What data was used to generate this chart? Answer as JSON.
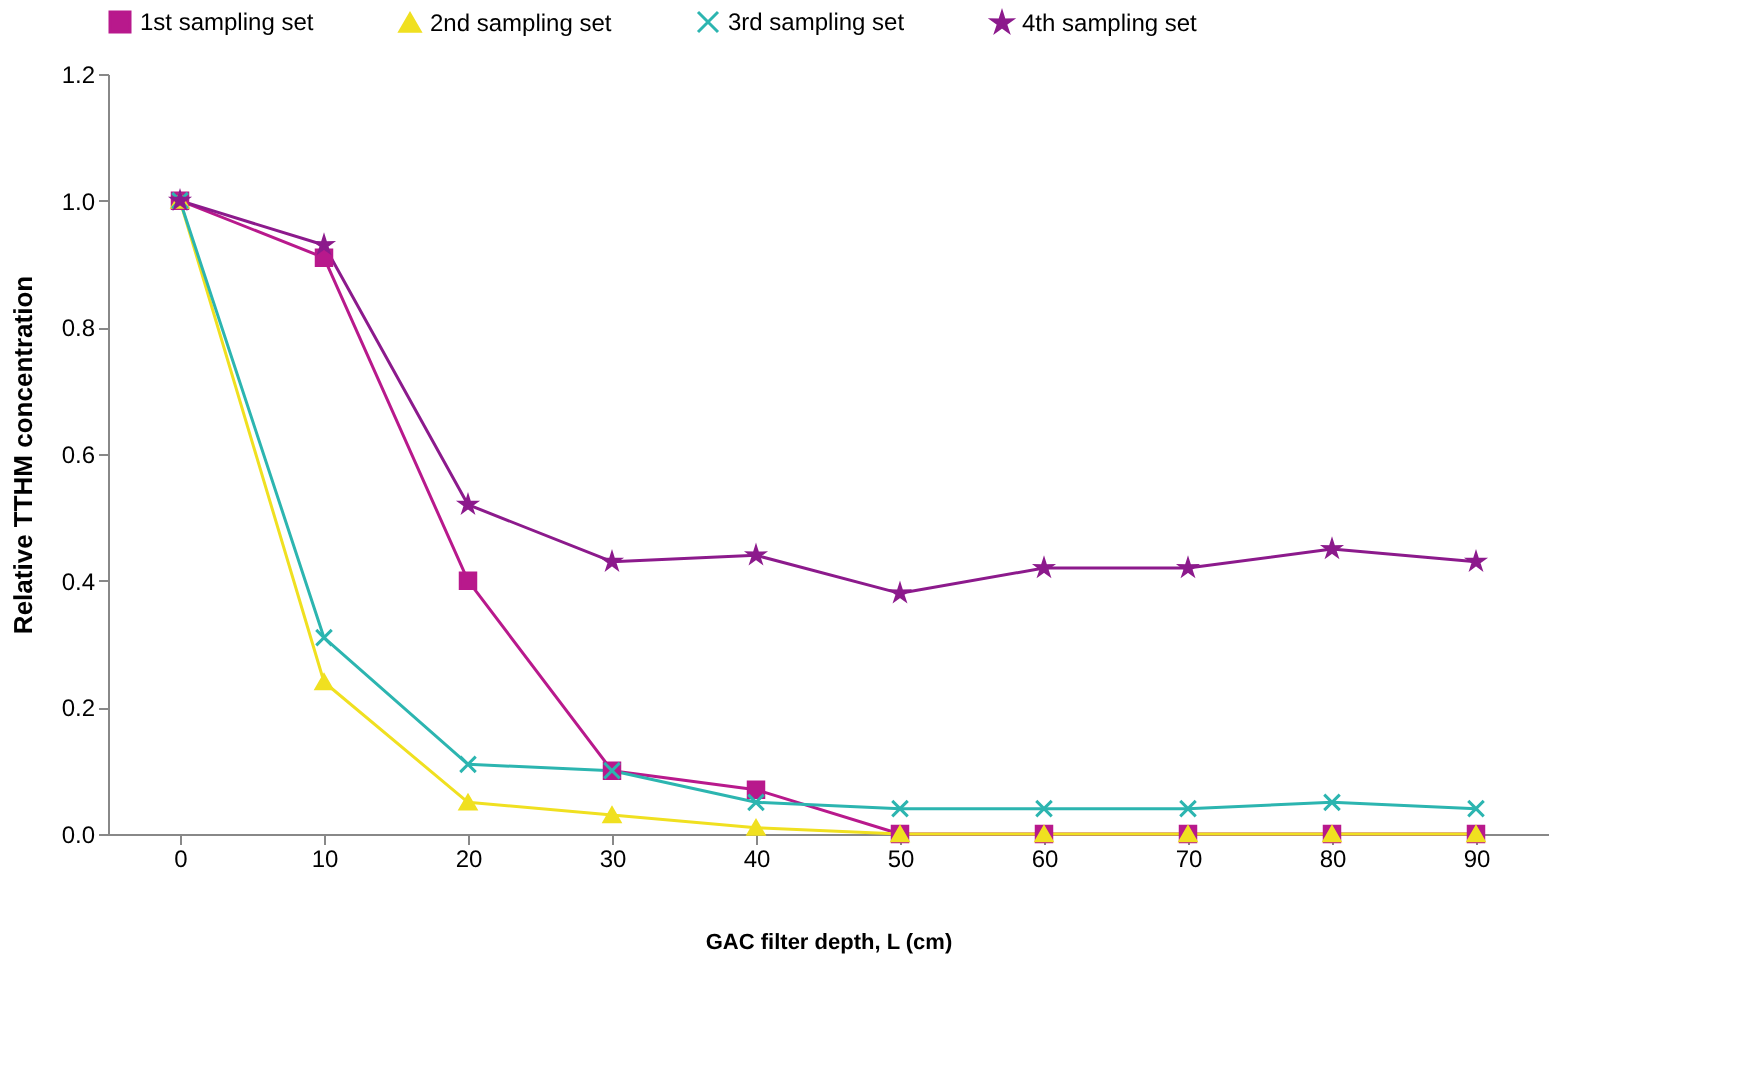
{
  "chart_data": {
    "type": "line",
    "xlabel": "GAC filter depth, L (cm)",
    "ylabel": "Relative TTHM concentration",
    "categories": [
      "0",
      "10",
      "20",
      "30",
      "40",
      "50",
      "60",
      "70",
      "80",
      "90"
    ],
    "ylim": [
      0,
      1.2
    ],
    "yticks": [
      {
        "value": 0,
        "label": "0.0"
      },
      {
        "value": 0.2,
        "label": "0.2"
      },
      {
        "value": 0.4,
        "label": "0.4"
      },
      {
        "value": 0.6,
        "label": "0.6"
      },
      {
        "value": 0.8,
        "label": "0.8"
      },
      {
        "value": 1,
        "label": "1.0"
      },
      {
        "value": 1.2,
        "label": "1.2"
      }
    ],
    "legend": "top",
    "grid": false,
    "line_style": "solid",
    "series": [
      {
        "name": "1st sampling set",
        "color": "#b8198c",
        "marker": "square",
        "values": [
          1.0,
          0.91,
          0.4,
          0.1,
          0.07,
          0,
          0,
          0,
          0,
          0
        ]
      },
      {
        "name": "2nd sampling set",
        "color": "#f0e020",
        "marker": "triangle",
        "values": [
          1.0,
          0.24,
          0.05,
          0.03,
          0.01,
          0,
          0,
          0,
          0,
          0
        ]
      },
      {
        "name": "3rd sampling set",
        "color": "#2cb5b0",
        "marker": "cross",
        "values": [
          1.0,
          0.31,
          0.11,
          0.1,
          0.05,
          0.04,
          0.04,
          0.04,
          0.05,
          0.04
        ]
      },
      {
        "name": "4th sampling set",
        "color": "#8c1a8c",
        "marker": "star",
        "values": [
          1.0,
          0.93,
          0.52,
          0.43,
          0.44,
          0.38,
          0.42,
          0.42,
          0.45,
          0.43
        ]
      }
    ]
  }
}
